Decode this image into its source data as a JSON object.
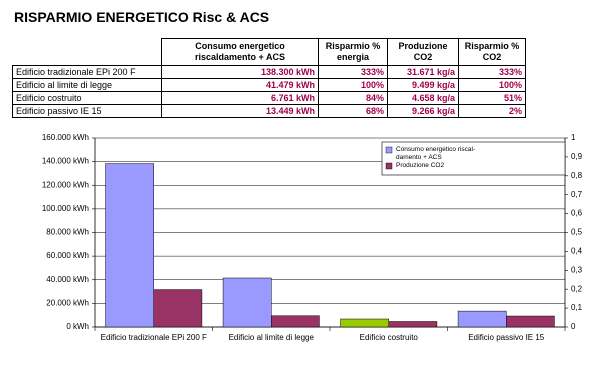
{
  "header": {
    "title": "RISPARMIO ENERGETICO Risc & ACS"
  },
  "table": {
    "columns": [
      "Consumo energetico riscaldamento + ACS",
      "Risparmio % energia",
      "Produzione CO2",
      "Risparmio % CO2"
    ],
    "rows": [
      [
        "Edificio tradizionale EPi 200 F",
        "138.300 kWh",
        "333%",
        "31.671 kg/a",
        "333%"
      ],
      [
        "Edificio al limite di legge",
        "41.479 kWh",
        "100%",
        "9.499 kg/a",
        "100%"
      ],
      [
        "Edificio costruito",
        "6.761 kWh",
        "84%",
        "4.658 kg/a",
        "51%"
      ],
      [
        "Edificio passivo IE 15",
        "13.449 kWh",
        "68%",
        "9.266 kg/a",
        "2%"
      ]
    ]
  },
  "chart_data": {
    "type": "bar",
    "categories": [
      "Edificio tradizionale EPi 200 F",
      "Edificio al limite di legge",
      "Edificio costruito",
      "Edificio passivo IE 15"
    ],
    "series": [
      {
        "name": "Consumo energetico riscal-damento + ACS",
        "color": "#9999ff",
        "point_colors": [
          "#9999ff",
          "#9999ff",
          "#99cc00",
          "#9999ff"
        ],
        "values": [
          138300,
          41479,
          6761,
          13449
        ]
      },
      {
        "name": "Produzione CO2",
        "color": "#993366",
        "values": [
          31671,
          9499,
          4658,
          9266
        ]
      }
    ],
    "ylim": [
      0,
      160000
    ],
    "yticks": [
      {
        "value": 0,
        "label": "0 kWh"
      },
      {
        "value": 20000,
        "label": "20.000 kWh"
      },
      {
        "value": 40000,
        "label": "40.000 kWh"
      },
      {
        "value": 60000,
        "label": "60.000 kWh"
      },
      {
        "value": 80000,
        "label": "80.000 kWh"
      },
      {
        "value": 100000,
        "label": "100.000 kWh"
      },
      {
        "value": 120000,
        "label": "120.000 kWh"
      },
      {
        "value": 140000,
        "label": "140.000 kWh"
      },
      {
        "value": 160000,
        "label": "160.000 kWh"
      }
    ],
    "y2lim": [
      0,
      1
    ],
    "y2ticks": [
      0,
      {
        "value": 0.1,
        "label": "0,1"
      },
      {
        "value": 0.2,
        "label": "0,2"
      },
      {
        "value": 0.3,
        "label": "0,3"
      },
      {
        "value": 0.4,
        "label": "0,4"
      },
      {
        "value": 0.5,
        "label": "0,5"
      },
      {
        "value": 0.6,
        "label": "0,6"
      },
      {
        "value": 0.7,
        "label": "0,7"
      },
      {
        "value": 0.8,
        "label": "0,8"
      },
      {
        "value": 0.9,
        "label": "0,9"
      },
      1
    ],
    "grid": true,
    "legend": "top-right"
  }
}
